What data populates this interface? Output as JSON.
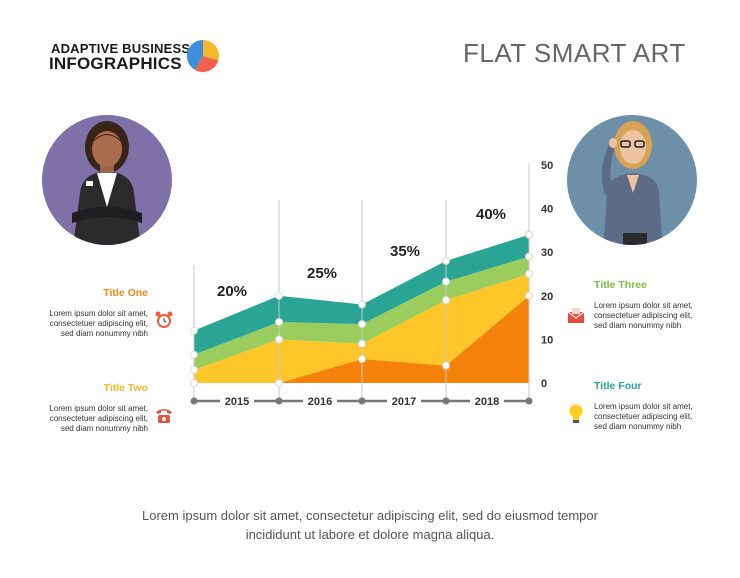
{
  "brand": {
    "line1": "ADAPTIVE BUSINESS",
    "line2": "INFOGRAPHICS"
  },
  "title": "FLAT SMART ART",
  "colors": {
    "orange": "#F5820B",
    "yellow": "#FFC629",
    "light_green": "#9ACD5E",
    "teal": "#2AA495"
  },
  "cards": [
    {
      "id": "one",
      "title": "Title One",
      "title_color": "#E8891E",
      "body": [
        "Lorem ipsum dolor sit amet,",
        "consectetuer adipiscing elit,",
        "sed diam nonummy nibh"
      ],
      "icon": "alarm-clock-icon"
    },
    {
      "id": "two",
      "title": "Title Two",
      "title_color": "#F4B82A",
      "body": [
        "Lorem ipsum dolor sit amet,",
        "consectetuer adipiscing elit,",
        "sed diam nonummy nibh"
      ],
      "icon": "telephone-icon"
    },
    {
      "id": "three",
      "title": "Title Three",
      "title_color": "#7DBA43",
      "body": [
        "Lorem ipsum dolor sit amet,",
        "consectetuer adipiscing elit,",
        "sed diam nonummy nibh"
      ],
      "icon": "envelope-icon"
    },
    {
      "id": "four",
      "title": "Title Four",
      "title_color": "#2AA495",
      "body": [
        "Lorem ipsum dolor sit amet,",
        "consectetuer adipiscing elit,",
        "sed diam nonummy nibh"
      ],
      "icon": "light-bulb-icon"
    }
  ],
  "footer": [
    "Lorem ipsum dolor sit amet, consectetur adipiscing elit, sed do eiusmod tempor",
    "incididunt ut labore et dolore magna aliqua."
  ],
  "chart_data": {
    "type": "area",
    "x": [
      "2015",
      "2016",
      "2017",
      "2018"
    ],
    "y_ticks": [
      0,
      10,
      20,
      30,
      40,
      50
    ],
    "ylim": [
      0,
      50
    ],
    "stack_tops": [
      {
        "color": "orange",
        "values": [
          0,
          5.5,
          4,
          20
        ]
      },
      {
        "color": "yellow",
        "values": [
          3,
          10,
          9,
          25
        ]
      },
      {
        "color": "light_green",
        "values": [
          6.5,
          14,
          13.5,
          29
        ]
      },
      {
        "color": "teal",
        "values": [
          12,
          20,
          18,
          34
        ]
      }
    ],
    "percent_labels": [
      "20%",
      "25%",
      "35%",
      "40%"
    ],
    "grid": false
  }
}
